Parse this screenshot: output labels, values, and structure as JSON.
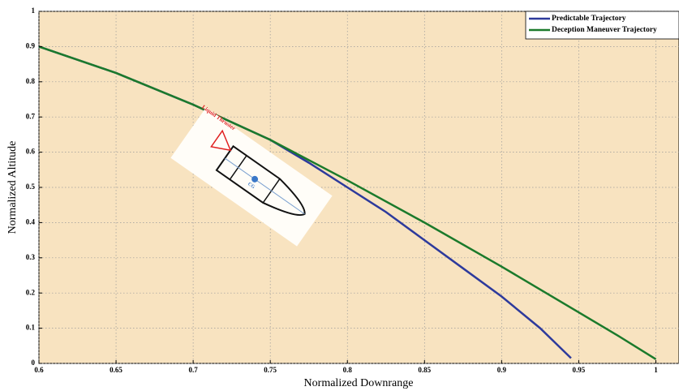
{
  "chart_data": {
    "type": "line",
    "xlabel": "Normalized Downrange",
    "ylabel": "Normalized Altitude",
    "xlim": [
      0.6,
      1.015
    ],
    "ylim": [
      0,
      1
    ],
    "xticks": [
      0.6,
      0.65,
      0.7,
      0.75,
      0.8,
      0.85,
      0.9,
      0.95,
      1
    ],
    "yticks": [
      0,
      0.1,
      0.2,
      0.3,
      0.4,
      0.5,
      0.6,
      0.7,
      0.8,
      0.9,
      1
    ],
    "grid": true,
    "legend": "upper right",
    "annotations": [
      "Liquid Thruster",
      "CG"
    ],
    "series": [
      {
        "name": "Predictable Trajectory",
        "color": "#2d3a9c",
        "x": [
          0.6,
          0.65,
          0.7,
          0.75,
          0.775,
          0.8,
          0.825,
          0.85,
          0.875,
          0.9,
          0.925,
          0.945
        ],
        "values": [
          0.9,
          0.825,
          0.735,
          0.635,
          0.57,
          0.5,
          0.43,
          0.35,
          0.27,
          0.19,
          0.1,
          0.015
        ]
      },
      {
        "name": "Deception Maneuver Trajectory",
        "color": "#1b7a2b",
        "x": [
          0.6,
          0.65,
          0.7,
          0.75,
          0.8,
          0.85,
          0.9,
          0.95,
          0.975,
          1
        ],
        "values": [
          0.9,
          0.825,
          0.735,
          0.635,
          0.52,
          0.4,
          0.275,
          0.145,
          0.08,
          0.012
        ]
      }
    ]
  }
}
